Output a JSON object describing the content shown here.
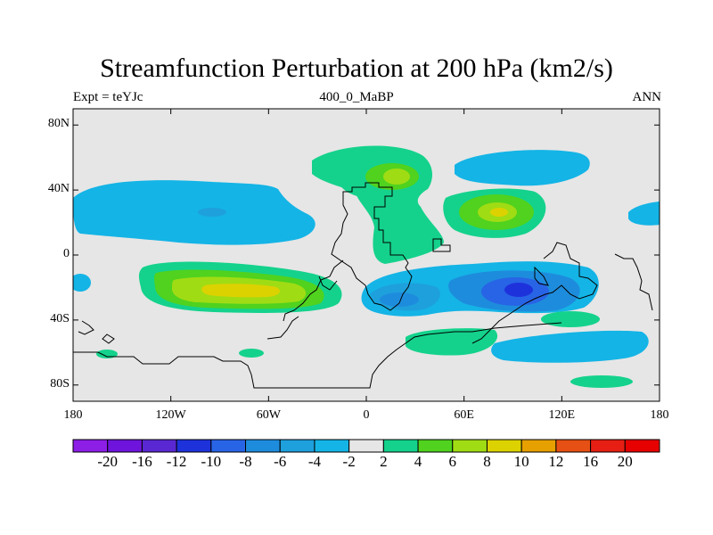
{
  "chart_data": {
    "type": "contour-map",
    "title": "Streamfunction Perturbation at 200 hPa (km2/s)",
    "left_label": "Expt = teYJc",
    "center_label": "400_0_MaBP",
    "right_label": "ANN",
    "xlim": [
      -180,
      180
    ],
    "ylim": [
      -90,
      90
    ],
    "x_ticks": [
      {
        "value": -180,
        "label": "180"
      },
      {
        "value": -120,
        "label": "120W"
      },
      {
        "value": -60,
        "label": "60W"
      },
      {
        "value": 0,
        "label": "0"
      },
      {
        "value": 60,
        "label": "60E"
      },
      {
        "value": 120,
        "label": "120E"
      },
      {
        "value": 180,
        "label": "180"
      }
    ],
    "y_ticks": [
      {
        "value": 80,
        "label": "80N"
      },
      {
        "value": 40,
        "label": "40N"
      },
      {
        "value": 0,
        "label": "0"
      },
      {
        "value": -40,
        "label": "40S"
      },
      {
        "value": -80,
        "label": "80S"
      }
    ],
    "levels": [
      -20,
      -16,
      -12,
      -10,
      -8,
      -6,
      -4,
      -2,
      2,
      4,
      6,
      8,
      10,
      12,
      16,
      20
    ],
    "colors": [
      "#8c1ee6",
      "#6e14dc",
      "#5a28d2",
      "#1e32dc",
      "#2864e6",
      "#1e8cdc",
      "#1ea0dc",
      "#14b4e6",
      "#e6e6e6",
      "#14d28c",
      "#50d21e",
      "#a0dc14",
      "#dcd200",
      "#e6a000",
      "#e65014",
      "#e61e14",
      "#e60000"
    ],
    "features": [
      {
        "name": "eq-south-pacific-low",
        "lon": -150,
        "lat": -28,
        "value": -4
      },
      {
        "name": "southern-pacific-high",
        "lon": -80,
        "lat": -22,
        "value": 8
      },
      {
        "name": "north-pacific-low",
        "lon": -110,
        "lat": 30,
        "value": -4
      },
      {
        "name": "north-africa-high",
        "lon": 20,
        "lat": 45,
        "value": 6
      },
      {
        "name": "central-asia-high",
        "lon": 80,
        "lat": 25,
        "value": 8
      },
      {
        "name": "indian-ocean-low",
        "lon": 85,
        "lat": -22,
        "value": -8
      },
      {
        "name": "south-atlantic-low",
        "lon": 25,
        "lat": -28,
        "value": -6
      },
      {
        "name": "southern-ocean-high",
        "lon": 50,
        "lat": -52,
        "value": 4
      },
      {
        "name": "north-pacific-east-low",
        "lon": 170,
        "lat": 25,
        "value": -4
      },
      {
        "name": "antarctic-high",
        "lon": 140,
        "lat": -78,
        "value": 4
      }
    ]
  }
}
